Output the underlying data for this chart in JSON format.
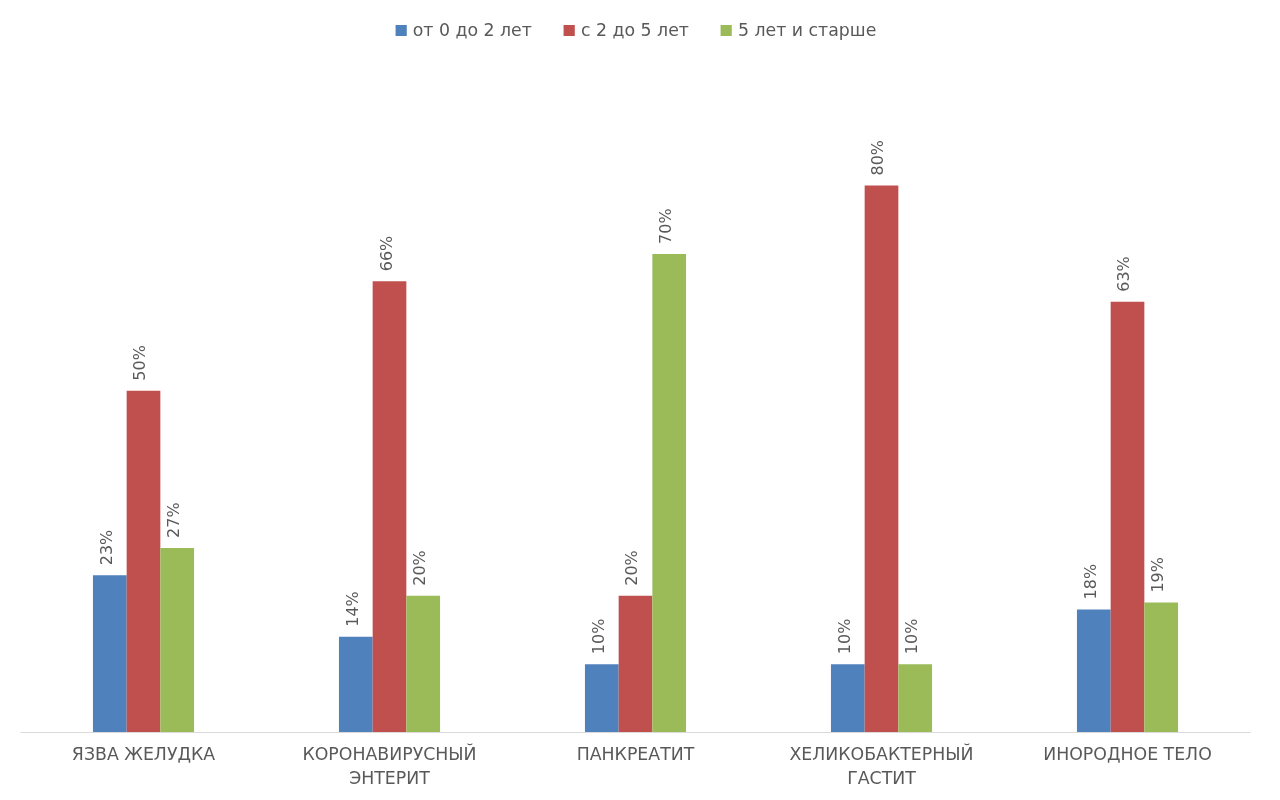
{
  "chart_data": {
    "type": "bar",
    "categories": [
      "ЯЗВА ЖЕЛУДКА",
      "КОРОНАВИРУСНЫЙ ЭНТЕРИТ",
      "ПАНКРЕАТИТ",
      "ХЕЛИКОБАКТЕРНЫЙ ГАСТИТ",
      "ИНОРОДНОЕ ТЕЛО"
    ],
    "series": [
      {
        "name": "от 0 до 2 лет",
        "color": "#4f81bd",
        "values": [
          23,
          14,
          10,
          10,
          18
        ],
        "value_labels": [
          "23%",
          "14%",
          "10%",
          "10%",
          "18%"
        ]
      },
      {
        "name": "с 2 до 5 лет",
        "color": "#c0504d",
        "values": [
          50,
          66,
          20,
          80,
          63
        ],
        "value_labels": [
          "50%",
          "66%",
          "20%",
          "80%",
          "63%"
        ]
      },
      {
        "name": "5 лет и старше",
        "color": "#9bbb59",
        "values": [
          27,
          20,
          70,
          10,
          19
        ],
        "value_labels": [
          "27%",
          "20%",
          "70%",
          "10%",
          "19%"
        ]
      }
    ],
    "legend": "top",
    "grid": false,
    "tick_labels": "x"
  }
}
